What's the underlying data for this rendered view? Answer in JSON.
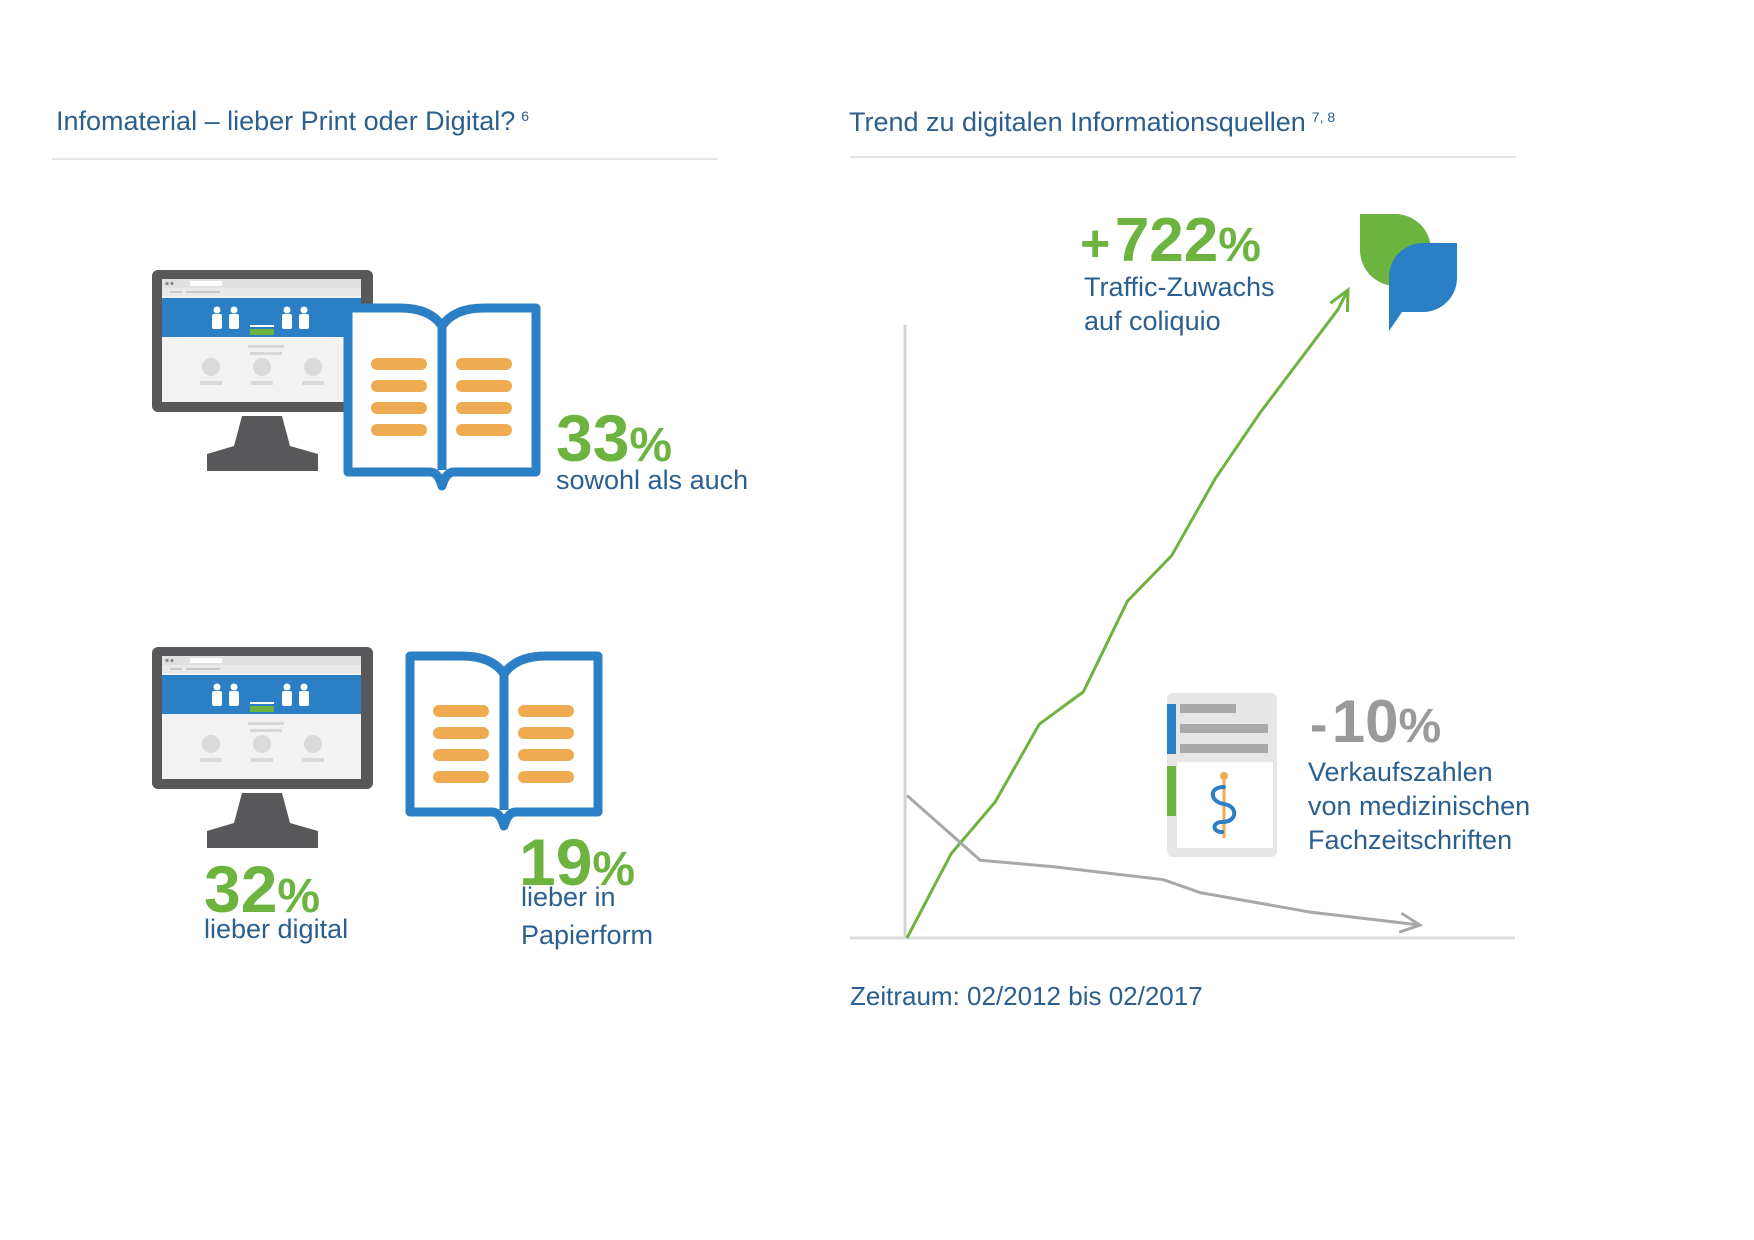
{
  "left_panel": {
    "title": "Infomaterial – lieber Print oder Digital?",
    "title_ref": "6",
    "stats": [
      {
        "value": "33",
        "unit": "%",
        "label_lines": [
          "sowohl als auch"
        ]
      },
      {
        "value": "32",
        "unit": "%",
        "label_lines": [
          "lieber digital"
        ]
      },
      {
        "value": "19",
        "unit": "%",
        "label_lines": [
          "lieber in",
          "Papierform"
        ]
      }
    ]
  },
  "right_panel": {
    "title": "Trend zu digitalen Informationsquellen",
    "title_ref": "7, 8",
    "traffic": {
      "sign": "+",
      "value": "722",
      "unit": "%",
      "label_lines": [
        "Traffic-Zuwachs",
        "auf coliquio"
      ]
    },
    "sales": {
      "sign": "-",
      "value": "10",
      "unit": "%",
      "label_lines": [
        "Verkaufszahlen",
        "von medizinischen",
        "Fachzeitschriften"
      ]
    },
    "period": "Zeitraum: 02/2012 bis 02/2017"
  },
  "colors": {
    "green": "#6cb33f",
    "blue": "#2b7fc4",
    "dark_blue": "#2b5f8f",
    "grey": "#9a9a9a",
    "orange": "#eeab52",
    "monitor": "#58585a"
  },
  "icons": [
    "monitor-icon",
    "open-book-icon",
    "coliquio-logo-icon",
    "journal-icon"
  ],
  "chart_data": [
    {
      "type": "table",
      "categories": [
        "sowohl als auch",
        "lieber digital",
        "lieber in Papierform"
      ],
      "values": [
        33,
        32,
        19
      ],
      "unit": "%"
    },
    {
      "type": "line",
      "xlabel": "",
      "ylabel": "",
      "axis": {
        "x_ticks": false,
        "y_ticks": false
      },
      "series": [
        {
          "name": "Traffic-Zuwachs auf coliquio",
          "color": "#6cb33f",
          "x": [
            0,
            1,
            2,
            3,
            4,
            5,
            6,
            7,
            8,
            9,
            10
          ],
          "values": [
            0,
            13,
            21,
            33,
            38,
            52,
            59,
            71,
            81,
            100,
            100
          ]
        },
        {
          "name": "Verkaufszahlen von medizinischen Fachzeitschriften",
          "color": "#a8a8a8",
          "x": [
            0,
            2,
            4,
            7,
            8,
            11,
            14
          ],
          "values": [
            22,
            12,
            11,
            9,
            7,
            4,
            2
          ]
        }
      ]
    }
  ]
}
